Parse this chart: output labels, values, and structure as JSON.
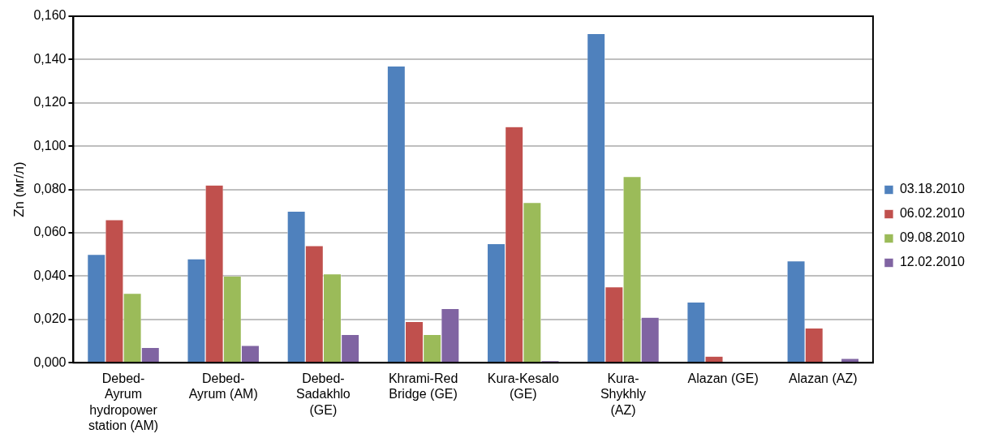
{
  "chart_data": {
    "type": "bar",
    "ylabel": "Zn (мг/л)",
    "categories": [
      "Debed-Ayrum hydropower station (AM)",
      "Debed-Ayrum (AM)",
      "Debed-Sadakhlo (GE)",
      "Khrami-Red Bridge (GE)",
      "Kura-Kesalo (GE)",
      "Kura-Shykhly (AZ)",
      "Alazan (GE)",
      "Alazan (AZ)"
    ],
    "series": [
      {
        "name": "03.18.2010",
        "color": "#4f81bd",
        "values": [
          0.05,
          0.048,
          0.07,
          0.137,
          0.055,
          0.152,
          0.028,
          0.047
        ]
      },
      {
        "name": "06.02.2010",
        "color": "#c0504d",
        "values": [
          0.066,
          0.082,
          0.054,
          0.019,
          0.109,
          0.035,
          0.003,
          0.016
        ]
      },
      {
        "name": "09.08.2010",
        "color": "#9bbb59",
        "values": [
          0.032,
          0.04,
          0.041,
          0.013,
          0.074,
          0.086,
          0,
          0
        ]
      },
      {
        "name": "12.02.2010",
        "color": "#8064a2",
        "values": [
          0.007,
          0.008,
          0.013,
          0.025,
          0.001,
          0.021,
          null,
          0.002
        ]
      }
    ],
    "ylim": [
      0,
      0.16
    ],
    "yticks": [
      {
        "value": 0,
        "label": "0,000"
      },
      {
        "value": 0.02,
        "label": "0,020"
      },
      {
        "value": 0.04,
        "label": "0,040"
      },
      {
        "value": 0.06,
        "label": "0,060"
      },
      {
        "value": 0.08,
        "label": "0,080"
      },
      {
        "value": 0.1,
        "label": "0,100"
      },
      {
        "value": 0.12,
        "label": "0,120"
      },
      {
        "value": 0.14,
        "label": "0,140"
      },
      {
        "value": 0.16,
        "label": "0,160"
      }
    ],
    "grid": "y",
    "legend": "right"
  }
}
